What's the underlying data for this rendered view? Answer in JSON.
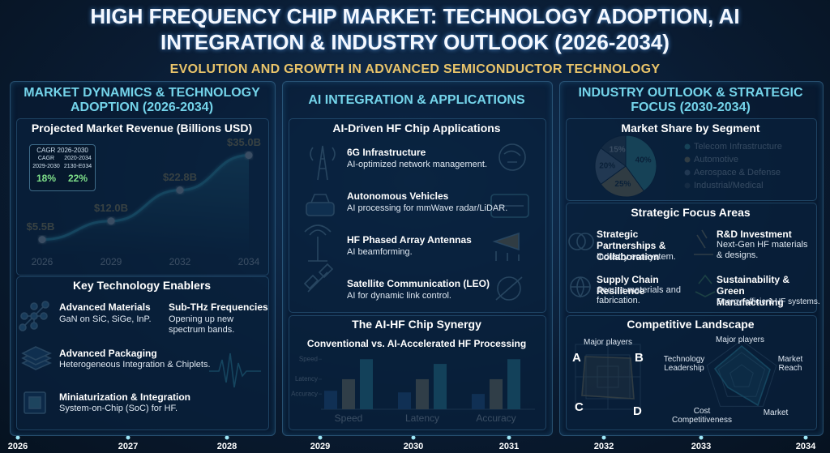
{
  "header": {
    "title": "HIGH FREQUENCY CHIP MARKET: TECHNOLOGY ADOPTION, AI INTEGRATION & INDUSTRY OUTLOOK (2026-2034)",
    "subtitle": "EVOLUTION AND GROWTH IN ADVANCED SEMICONDUCTOR TECHNOLOGY"
  },
  "market_dynamics": {
    "heading": "MARKET DYNAMICS & TECHNOLOGY ADOPTION (2026-2034)",
    "cagr_box": {
      "title": "CAGR 2026-2030",
      "columns": [
        {
          "label": "CAGR",
          "period": "2029-2030",
          "value": "18%"
        },
        {
          "label": "2020-2034",
          "period": "2130-E034",
          "value": "22%"
        }
      ]
    },
    "enablers": {
      "heading": "Key Technology Enablers",
      "items": [
        {
          "title": "Advanced Materials",
          "text": "GaN on SiC, SiGe, InP."
        },
        {
          "title": "Sub-THz Frequencies",
          "text": "Opening up new spectrum bands."
        },
        {
          "title": "Advanced Packaging",
          "text": "Heterogeneous Integration & Chiplets."
        },
        {
          "title": "Miniaturization & Integration",
          "text": "System-on-Chip (SoC) for HF."
        }
      ]
    }
  },
  "ai_integration": {
    "heading": "AI INTEGRATION & APPLICATIONS",
    "applications": {
      "heading": "AI-Driven HF Chip Applications",
      "items": [
        {
          "title": "6G Infrastructure",
          "text": "AI-optimized network management."
        },
        {
          "title": "Autonomous Vehicles",
          "text": "AI processing for mmWave radar/LiDAR."
        },
        {
          "title": "HF Phased Array Antennas",
          "text": "AI beamforming."
        },
        {
          "title": "Satellite Communication (LEO)",
          "text": "AI for dynamic link control."
        }
      ]
    },
    "synergy_heading": "The AI-HF Chip Synergy"
  },
  "industry_outlook": {
    "heading": "INDUSTRY OUTLOOK & STRATEGIC FOCUS (2030-2034)",
    "strategic": {
      "heading": "Strategic Focus Areas",
      "items": [
        {
          "title": "Strategic Partnerships & Collaboration",
          "text": "Industry ecosystem."
        },
        {
          "title": "R&D Investment",
          "text": "Next-Gen HF materials & designs."
        },
        {
          "title": "Supply Chain Resilience",
          "text": "Secure materials and fabrication."
        },
        {
          "title": "Sustainability & Green Manufacturing",
          "text": "Energy-efficient HF systems."
        }
      ]
    },
    "competitive": {
      "heading": "Competitive Landscape",
      "radar_a": {
        "title": "Major players",
        "corners": [
          "A",
          "B",
          "C",
          "D"
        ]
      },
      "radar_b": {
        "labels": [
          "Major players",
          "Market Reach",
          "Market",
          "Cost Competitiveness",
          "Technology Leadership"
        ]
      }
    }
  },
  "chart_data": [
    {
      "type": "line",
      "title": "Projected Market Revenue (Billions USD)",
      "categories": [
        "2026",
        "2029",
        "2032",
        "2034"
      ],
      "values": [
        5.5,
        12.0,
        22.8,
        35.0
      ],
      "value_labels": [
        "$5.5B",
        "$12.0B",
        "$22.8B",
        "$35.0B"
      ],
      "ylim": [
        0,
        40
      ],
      "color": "#49d6ee"
    },
    {
      "type": "bar",
      "title": "Conventional vs. AI-Accelerated HF Processing",
      "categories": [
        "Speed",
        "Latency",
        "Accuracy"
      ],
      "series": [
        {
          "color": "#2f6fb8",
          "values": [
            35,
            32,
            29
          ]
        },
        {
          "color": "#c9b47a",
          "values": [
            57,
            57,
            57
          ]
        },
        {
          "color": "#3fc4d4",
          "values": [
            95,
            86,
            95
          ]
        }
      ],
      "ylim": [
        0,
        100
      ],
      "yticks": [
        {
          "value": 29,
          "label": "Accuracy"
        },
        {
          "value": 57,
          "label": "Latency"
        },
        {
          "value": 95,
          "label": "Speed"
        }
      ]
    },
    {
      "type": "pie",
      "title": "Market Share by Segment",
      "categories": [
        "Telecom Infrastructure",
        "Automotive",
        "Aerospace & Defense",
        "Industrial/Medical"
      ],
      "values": [
        40,
        25,
        20,
        15
      ],
      "value_labels": [
        "40%",
        "25%",
        "20%",
        "15%"
      ],
      "colors": [
        "#4cc6c6",
        "#c9a865",
        "#8197ab",
        "#4b5662"
      ]
    }
  ],
  "timeline": [
    "2026",
    "2027",
    "2028",
    "2029",
    "2030",
    "2031",
    "2032",
    "2033",
    "2034"
  ]
}
